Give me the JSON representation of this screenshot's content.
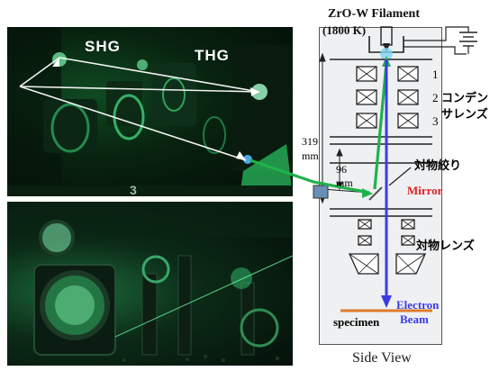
{
  "photos": {
    "top_label_shg": "SHG",
    "top_label_thg": "THG"
  },
  "diagram": {
    "filament_title": "ZrO-W  Filament",
    "filament_temp": "(1800 K)",
    "lens_numbers": [
      "1",
      "2",
      "3"
    ],
    "condenser_label_line1": "コンデン",
    "condenser_label_line2": "サレンズ",
    "aperture_label": "対物絞り",
    "mirror_label": "Mirror",
    "objective_label": "対物レンズ",
    "electron_label_line1": "Electron",
    "electron_label_line2": "Beam",
    "specimen_label": "specimen",
    "dim_319": "319",
    "dim_96": "96",
    "dim_unit": "mm",
    "caption": "Side View"
  },
  "colors": {
    "laser_green": "#1fb24a",
    "electron_blue": "#3b3be6",
    "mirror_red": "#e02020",
    "specimen_orange": "#e07b2a",
    "filament_glow": "#7fd4f0"
  }
}
